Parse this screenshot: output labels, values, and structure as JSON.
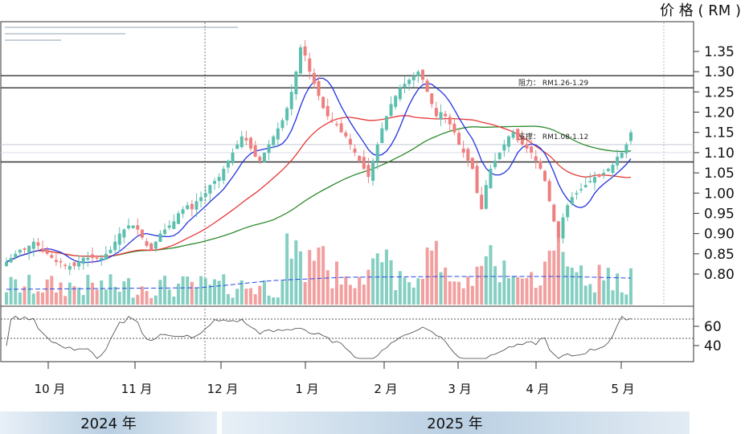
{
  "chart_data": {
    "type": "candlestick",
    "y_unit_label": "价 格 ( RM )",
    "y_ticks": [
      "1.35",
      "1.30",
      "1.25",
      "1.20",
      "1.15",
      "1.10",
      "1.05",
      "1.00",
      "0.95",
      "0.90",
      "0.85",
      "0.80"
    ],
    "ylim": [
      0.78,
      1.4
    ],
    "x_months": [
      "10 月",
      "11 月",
      "12 月",
      "1 月",
      "2 月",
      "3 月",
      "4 月",
      "5 月"
    ],
    "years": [
      "2024 年",
      "2025 年"
    ],
    "resistance": {
      "label": "阻力： RM1.26-1.29",
      "range": [
        1.26,
        1.29
      ]
    },
    "support": {
      "label": "支撑： RM1.08-1.12",
      "range": [
        1.08,
        1.12
      ]
    },
    "rsi_ticks": [
      "60",
      "40"
    ],
    "colors": {
      "up": "#5cbfae",
      "down": "#ee7f7f",
      "ma_short": "#2333e0",
      "ma_mid": "#e83838",
      "ma_long": "#2e8a2e",
      "volume_avg": "#2848e8"
    },
    "closes": [
      0.83,
      0.84,
      0.85,
      0.86,
      0.86,
      0.87,
      0.88,
      0.87,
      0.86,
      0.85,
      0.84,
      0.83,
      0.83,
      0.82,
      0.82,
      0.82,
      0.83,
      0.84,
      0.84,
      0.84,
      0.84,
      0.84,
      0.85,
      0.86,
      0.88,
      0.9,
      0.91,
      0.92,
      0.92,
      0.91,
      0.89,
      0.87,
      0.86,
      0.88,
      0.9,
      0.91,
      0.92,
      0.93,
      0.95,
      0.96,
      0.97,
      0.96,
      0.98,
      0.99,
      1.0,
      1.02,
      1.03,
      1.04,
      1.06,
      1.08,
      1.1,
      1.12,
      1.14,
      1.13,
      1.11,
      1.09,
      1.08,
      1.1,
      1.12,
      1.14,
      1.16,
      1.18,
      1.21,
      1.25,
      1.3,
      1.36,
      1.34,
      1.3,
      1.27,
      1.24,
      1.21,
      1.19,
      1.18,
      1.17,
      1.15,
      1.14,
      1.12,
      1.1,
      1.08,
      1.06,
      1.04,
      1.08,
      1.12,
      1.16,
      1.19,
      1.22,
      1.24,
      1.26,
      1.27,
      1.28,
      1.29,
      1.3,
      1.28,
      1.25,
      1.22,
      1.19,
      1.2,
      1.19,
      1.17,
      1.15,
      1.12,
      1.1,
      1.08,
      1.06,
      1.0,
      0.96,
      1.02,
      1.06,
      1.08,
      1.1,
      1.12,
      1.14,
      1.15,
      1.13,
      1.12,
      1.11,
      1.1,
      1.08,
      1.06,
      1.03,
      0.98,
      0.93,
      0.89,
      0.94,
      0.97,
      0.99,
      1.0,
      1.01,
      1.02,
      1.03,
      1.04,
      1.04,
      1.05,
      1.06,
      1.07,
      1.09,
      1.1,
      1.12,
      1.15
    ]
  }
}
